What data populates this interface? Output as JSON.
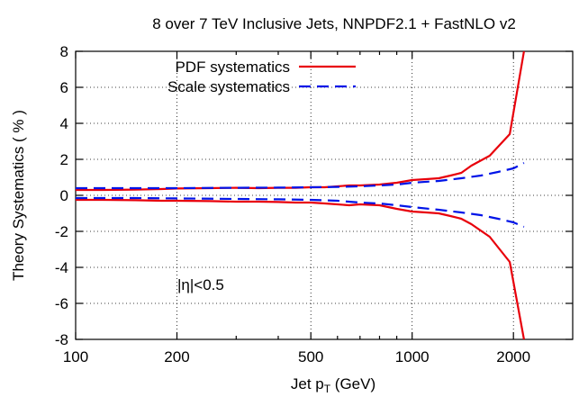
{
  "chart_data": {
    "type": "line",
    "title": "8 over 7 TeV Inclusive Jets, NNPDF2.1 + FastNLO v2",
    "xlabel": "Jet p",
    "xlabel_sub": "T",
    "xlabel_unit": " (GeV)",
    "ylabel": "Theory Systematics ( % )",
    "xscale": "log",
    "xlim": [
      100,
      3000
    ],
    "ylim": [
      -8,
      8
    ],
    "grid": true,
    "legend_position": "top-left",
    "annotation": "|η|<0.5",
    "x_ticks": [
      {
        "value": 100,
        "label": "100"
      },
      {
        "value": 200,
        "label": "200"
      },
      {
        "value": 500,
        "label": "500"
      },
      {
        "value": 1000,
        "label": "1000"
      },
      {
        "value": 2000,
        "label": "2000"
      }
    ],
    "y_ticks": [
      {
        "value": 8,
        "label": "8"
      },
      {
        "value": 6,
        "label": "6"
      },
      {
        "value": 4,
        "label": "4"
      },
      {
        "value": 2,
        "label": "2"
      },
      {
        "value": 0,
        "label": "0"
      },
      {
        "value": -2,
        "label": "-2"
      },
      {
        "value": -4,
        "label": "-4"
      },
      {
        "value": -6,
        "label": "-6"
      },
      {
        "value": -8,
        "label": "-8"
      }
    ],
    "series": [
      {
        "name": "PDF systematics",
        "color": "#e8000b",
        "style": "solid",
        "lines": [
          {
            "x": [
              100,
              120,
              150,
              180,
              200,
              250,
              300,
              350,
              400,
              450,
              500,
              550,
              600,
              650,
              700,
              800,
              900,
              1000,
              1100,
              1200,
              1300,
              1400,
              1500,
              1700,
              1950,
              2150
            ],
            "y": [
              0.3,
              0.3,
              0.32,
              0.35,
              0.38,
              0.4,
              0.42,
              0.4,
              0.42,
              0.42,
              0.45,
              0.45,
              0.5,
              0.55,
              0.55,
              0.6,
              0.7,
              0.85,
              0.9,
              0.95,
              1.1,
              1.25,
              1.65,
              2.2,
              3.4,
              8.0
            ]
          },
          {
            "x": [
              100,
              120,
              150,
              180,
              200,
              250,
              300,
              350,
              400,
              450,
              500,
              550,
              600,
              650,
              700,
              800,
              900,
              1000,
              1100,
              1200,
              1300,
              1400,
              1500,
              1700,
              1950,
              2150
            ],
            "y": [
              -0.25,
              -0.25,
              -0.27,
              -0.3,
              -0.3,
              -0.32,
              -0.35,
              -0.35,
              -0.37,
              -0.4,
              -0.4,
              -0.45,
              -0.5,
              -0.55,
              -0.5,
              -0.55,
              -0.75,
              -0.9,
              -0.95,
              -1.0,
              -1.15,
              -1.3,
              -1.6,
              -2.3,
              -3.7,
              -8.0
            ]
          }
        ]
      },
      {
        "name": "Scale systematics",
        "color": "#0014e8",
        "style": "dashed",
        "lines": [
          {
            "x": [
              100,
              150,
              200,
              300,
              400,
              500,
              600,
              700,
              800,
              900,
              1000,
              1200,
              1400,
              1600,
              1800,
              2000,
              2150
            ],
            "y": [
              0.4,
              0.4,
              0.4,
              0.42,
              0.43,
              0.45,
              0.47,
              0.5,
              0.55,
              0.6,
              0.7,
              0.8,
              0.95,
              1.1,
              1.3,
              1.5,
              1.8
            ]
          },
          {
            "x": [
              100,
              150,
              200,
              300,
              400,
              500,
              600,
              700,
              800,
              900,
              1000,
              1200,
              1400,
              1600,
              1800,
              2000,
              2150
            ],
            "y": [
              -0.15,
              -0.15,
              -0.17,
              -0.2,
              -0.22,
              -0.25,
              -0.3,
              -0.4,
              -0.45,
              -0.55,
              -0.65,
              -0.8,
              -0.95,
              -1.1,
              -1.3,
              -1.5,
              -1.75
            ]
          }
        ]
      }
    ]
  }
}
